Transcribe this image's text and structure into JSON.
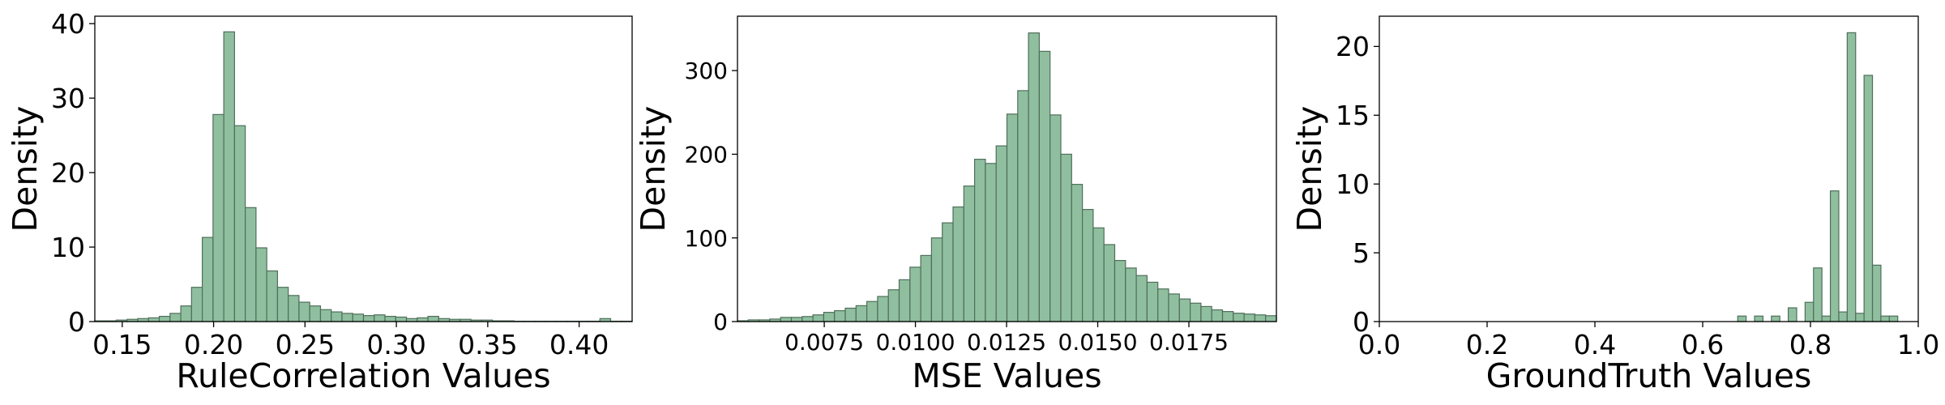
{
  "chart_data": [
    {
      "type": "bar",
      "xlabel": "RuleCorrelation Values",
      "ylabel": "Density",
      "xlim": [
        0.135,
        0.429
      ],
      "ylim": [
        0,
        41
      ],
      "xticks": [
        "0.15",
        "0.20",
        "0.25",
        "0.30",
        "0.35",
        "0.40"
      ],
      "xtick_values": [
        0.15,
        0.2,
        0.25,
        0.3,
        0.35,
        0.4
      ],
      "yticks": [
        "0",
        "10",
        "20",
        "30",
        "40"
      ],
      "ytick_values": [
        0,
        10,
        20,
        30,
        40
      ],
      "bin_start": 0.135,
      "bin_width": 0.00588,
      "values": [
        0.1,
        0.1,
        0.2,
        0.3,
        0.4,
        0.5,
        0.7,
        1.1,
        2.1,
        4.6,
        11.3,
        27.8,
        38.9,
        26.3,
        15.3,
        9.9,
        6.8,
        4.6,
        3.5,
        2.6,
        2.1,
        1.6,
        1.3,
        1.1,
        1.0,
        0.8,
        0.9,
        0.7,
        0.6,
        0.4,
        0.5,
        0.7,
        0.4,
        0.3,
        0.3,
        0.2,
        0.2,
        0.1,
        0.1,
        0.05,
        0.05,
        0.05,
        0.05,
        0.05,
        0.05,
        0.05,
        0.05,
        0.4,
        0.05,
        0.05
      ],
      "bar_color": "#8fbf9f",
      "edge_color": "#4f6f5a"
    },
    {
      "type": "bar",
      "xlabel": "MSE Values",
      "ylabel": "Density",
      "xlim": [
        0.00512,
        0.0199
      ],
      "ylim": [
        0,
        365
      ],
      "xticks": [
        "0.0075",
        "0.0100",
        "0.0125",
        "0.0150",
        "0.0175"
      ],
      "xtick_values": [
        0.0075,
        0.01,
        0.0125,
        0.015,
        0.0175
      ],
      "yticks": [
        "0",
        "100",
        "200",
        "300"
      ],
      "ytick_values": [
        0,
        100,
        200,
        300
      ],
      "bin_start": 0.00512,
      "bin_width": 0.0002956,
      "values": [
        1,
        2,
        2,
        3,
        5,
        5,
        6,
        8,
        11,
        13,
        16,
        19,
        24,
        30,
        38,
        50,
        65,
        79,
        100,
        118,
        137,
        162,
        194,
        189,
        210,
        248,
        276,
        345,
        323,
        247,
        200,
        164,
        134,
        112,
        92,
        73,
        64,
        55,
        47,
        39,
        33,
        27,
        22,
        18,
        14,
        12,
        10,
        9,
        8,
        7
      ],
      "bar_color": "#8fbf9f",
      "edge_color": "#4f6f5a"
    },
    {
      "type": "bar",
      "xlabel": "GroundTruth Values",
      "ylabel": "Density",
      "xlim": [
        0.0,
        1.0
      ],
      "ylim": [
        0,
        22.2
      ],
      "xticks": [
        "0.0",
        "0.2",
        "0.4",
        "0.6",
        "0.8",
        "1.0"
      ],
      "xtick_values": [
        0.0,
        0.2,
        0.4,
        0.6,
        0.8,
        1.0
      ],
      "yticks": [
        "0",
        "5",
        "10",
        "15",
        "20"
      ],
      "ytick_values": [
        0,
        5,
        10,
        15,
        20
      ],
      "bin_start": 0.665,
      "bin_width": 0.01563,
      "values": [
        0.4,
        0,
        0.4,
        0,
        0.4,
        0,
        1.0,
        0,
        1.4,
        3.9,
        0.4,
        9.5,
        0.7,
        21.0,
        0.6,
        17.9,
        4.1,
        0.4,
        0.4,
        0
      ],
      "bar_color": "#8fbf9f",
      "edge_color": "#4f6f5a"
    }
  ]
}
